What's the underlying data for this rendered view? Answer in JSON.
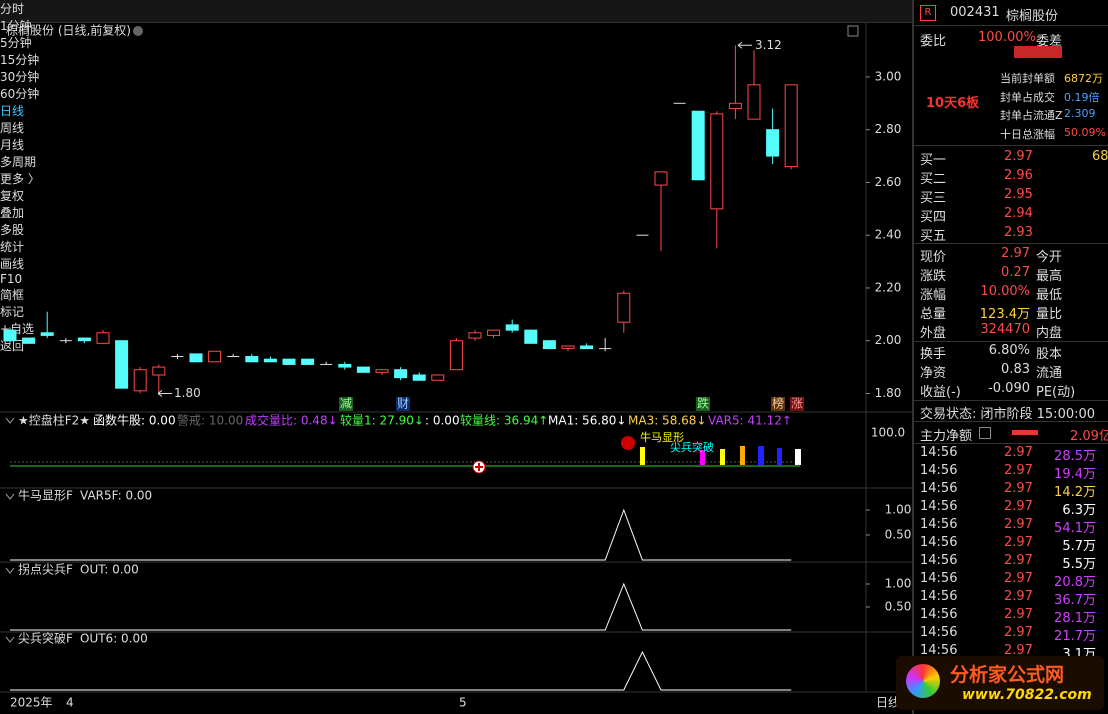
{
  "toolbar": {
    "periods": [
      "分时",
      "1分钟",
      "5分钟",
      "15分钟",
      "30分钟",
      "60分钟",
      "日线",
      "周线",
      "月线",
      "多周期",
      "更多 〉"
    ],
    "tools": [
      "复权",
      "叠加",
      "多股",
      "统计",
      "画线",
      "F10",
      "简框",
      "标记",
      "+自选",
      "返回"
    ]
  },
  "main": {
    "title": "棕榈股份 (日线,前复权)",
    "ylim": [
      1.76,
      3.14
    ],
    "yticks": [
      {
        "value": 1.8,
        "label": "1.80"
      },
      {
        "value": 2.0,
        "label": "2.00"
      },
      {
        "value": 2.2,
        "label": "2.20"
      },
      {
        "value": 2.4,
        "label": "2.40"
      },
      {
        "value": 2.6,
        "label": "2.60"
      },
      {
        "value": 2.8,
        "label": "2.80"
      },
      {
        "value": 3.0,
        "label": "3.00"
      }
    ],
    "high_mark": 3.12,
    "low_mark": {
      "value": 1.8,
      "label": "1.80"
    },
    "up_color": "#ff4a4a",
    "down_color": "#54fcfc",
    "flat_color": "#e0e0e0",
    "candles": [
      [
        2.04,
        2.05,
        1.99,
        2.0
      ],
      [
        2.01,
        2.01,
        1.99,
        1.99
      ],
      [
        2.03,
        2.11,
        2.01,
        2.02
      ],
      [
        2.0,
        2.01,
        1.99,
        2.0
      ],
      [
        2.01,
        2.01,
        1.99,
        2.0
      ],
      [
        1.99,
        2.04,
        1.99,
        2.03
      ],
      [
        2.0,
        2.0,
        1.82,
        1.82
      ],
      [
        1.81,
        1.9,
        1.8,
        1.89
      ],
      [
        1.87,
        1.91,
        1.8,
        1.9
      ],
      [
        1.94,
        1.95,
        1.93,
        1.94
      ],
      [
        1.95,
        1.95,
        1.92,
        1.92
      ],
      [
        1.92,
        1.96,
        1.92,
        1.96
      ],
      [
        1.94,
        1.95,
        1.94,
        1.94
      ],
      [
        1.94,
        1.95,
        1.92,
        1.92
      ],
      [
        1.93,
        1.94,
        1.92,
        1.92
      ],
      [
        1.93,
        1.93,
        1.91,
        1.91
      ],
      [
        1.93,
        1.93,
        1.91,
        1.91
      ],
      [
        1.91,
        1.92,
        1.91,
        1.91
      ],
      [
        1.91,
        1.92,
        1.89,
        1.9
      ],
      [
        1.9,
        1.9,
        1.88,
        1.88
      ],
      [
        1.88,
        1.89,
        1.87,
        1.89
      ],
      [
        1.89,
        1.9,
        1.85,
        1.86
      ],
      [
        1.87,
        1.88,
        1.85,
        1.85
      ],
      [
        1.85,
        1.87,
        1.85,
        1.87
      ],
      [
        1.89,
        2.01,
        1.89,
        2.0
      ],
      [
        2.01,
        2.04,
        2.0,
        2.03
      ],
      [
        2.02,
        2.04,
        2.01,
        2.04
      ],
      [
        2.06,
        2.08,
        2.03,
        2.04
      ],
      [
        2.04,
        2.04,
        1.99,
        1.99
      ],
      [
        2.0,
        2.0,
        1.97,
        1.97
      ],
      [
        1.97,
        1.98,
        1.96,
        1.98
      ],
      [
        1.98,
        1.99,
        1.97,
        1.97
      ],
      [
        1.97,
        2.01,
        1.96,
        1.97
      ],
      [
        2.07,
        2.19,
        2.03,
        2.18
      ],
      [
        2.4,
        2.4,
        2.4,
        2.4
      ],
      [
        2.59,
        2.64,
        2.34,
        2.64
      ],
      [
        2.9,
        2.9,
        2.9,
        2.9
      ],
      [
        2.87,
        2.87,
        2.61,
        2.61
      ],
      [
        2.5,
        2.87,
        2.35,
        2.86
      ],
      [
        2.88,
        3.12,
        2.84,
        2.9
      ],
      [
        2.84,
        3.1,
        2.84,
        2.97
      ],
      [
        2.8,
        2.88,
        2.67,
        2.7
      ],
      [
        2.66,
        2.97,
        2.65,
        2.97
      ]
    ],
    "event_tags": [
      "减",
      "财",
      "跌",
      "榜",
      "涨"
    ]
  },
  "indicator": {
    "title": "★控盘柱F2★",
    "items": [
      "函数牛股: 0.00",
      "警戒: 10.00",
      "成交量比: 0.48↓",
      "较量1: 27.90↓",
      ": 0.00",
      "较量线: 36.94↑",
      "MA1: 56.80↓",
      "MA3: 58.68↓",
      "VAR5: 41.12↑"
    ],
    "ytick": "100.0",
    "notes": [
      "牛马显形",
      "尖兵突破"
    ]
  },
  "panels": [
    {
      "title": "牛马显形F",
      "readout": "VAR5F: 0.00",
      "ylim": [
        0,
        1
      ],
      "yticks": [
        {
          "value": 1,
          "label": "1.00"
        },
        {
          "value": 0.5,
          "label": "0.50"
        }
      ],
      "values": [
        0,
        0,
        0,
        0,
        0,
        0,
        0,
        0,
        0,
        0,
        0,
        0,
        0,
        0,
        0,
        0,
        0,
        0,
        0,
        0,
        0,
        0,
        0,
        0,
        0,
        0,
        0,
        0,
        0,
        0,
        0,
        0,
        0,
        1,
        0,
        0,
        0,
        0,
        0,
        0,
        0,
        0,
        0
      ]
    },
    {
      "title": "拐点尖兵F",
      "readout": "OUT: 0.00",
      "ylim": [
        0,
        1
      ],
      "yticks": [
        {
          "value": 1,
          "label": "1.00"
        },
        {
          "value": 0.5,
          "label": "0.50"
        }
      ],
      "values": [
        0,
        0,
        0,
        0,
        0,
        0,
        0,
        0,
        0,
        0,
        0,
        0,
        0,
        0,
        0,
        0,
        0,
        0,
        0,
        0,
        0,
        0,
        0,
        0,
        0,
        0,
        0,
        0,
        0,
        0,
        0,
        0,
        0,
        1,
        0,
        0,
        0,
        0,
        0,
        0,
        0,
        0,
        0
      ]
    },
    {
      "title": "尖兵突破F",
      "readout": "OUT6: 0.00",
      "ylim": [
        0,
        1
      ],
      "values": [
        0,
        0,
        0,
        0,
        0,
        0,
        0,
        0,
        0,
        0,
        0,
        0,
        0,
        0,
        0,
        0,
        0,
        0,
        0,
        0,
        0,
        0,
        0,
        0,
        0,
        0,
        0,
        0,
        0,
        0,
        0,
        0,
        0,
        0,
        1,
        0,
        0,
        0,
        0,
        0,
        0,
        0,
        0
      ]
    }
  ],
  "time_axis": [
    "2025年",
    "4",
    "5",
    "日线"
  ],
  "quote_panel": {
    "badge": "R",
    "code": "002431",
    "name": "棕榈股份",
    "ratio_label": "委比",
    "ratio": "100.00%",
    "diff_label": "委差",
    "streak": "10天6板",
    "seal": [
      [
        "当前封单额",
        "6872万"
      ],
      [
        "封单占成交",
        "0.19倍"
      ],
      [
        "封单占流通Z",
        "2.309"
      ],
      [
        "十日总涨幅",
        "50.09%"
      ]
    ],
    "bids": [
      [
        "买一",
        "2.97",
        "68"
      ],
      [
        "买二",
        "2.96",
        ""
      ],
      [
        "买三",
        "2.95",
        ""
      ],
      [
        "买四",
        "2.94",
        ""
      ],
      [
        "买五",
        "2.93",
        ""
      ]
    ],
    "quotes": [
      [
        "现价",
        "2.97",
        "今开"
      ],
      [
        "涨跌",
        "0.27",
        "最高"
      ],
      [
        "涨幅",
        "10.00%",
        "最低"
      ],
      [
        "总量",
        "123.4万",
        "量比"
      ],
      [
        "外盘",
        "324470",
        "内盘"
      ]
    ],
    "stats": [
      [
        "换手",
        "6.80%",
        "股本"
      ],
      [
        "净资",
        "0.83",
        "流通"
      ],
      [
        "收益(-)",
        "-0.090",
        "PE(动)"
      ]
    ],
    "status": "交易状态: 闭市阶段 15:00:00",
    "flow_label": "主力净额",
    "flow": "2.09亿",
    "trades": [
      [
        "14:56",
        "2.97",
        "28.5万"
      ],
      [
        "14:56",
        "2.97",
        "19.4万"
      ],
      [
        "14:56",
        "2.97",
        "14.2万"
      ],
      [
        "14:56",
        "2.97",
        "6.3万"
      ],
      [
        "14:56",
        "2.97",
        "54.1万"
      ],
      [
        "14:56",
        "2.97",
        "5.7万"
      ],
      [
        "14:56",
        "2.97",
        "5.5万"
      ],
      [
        "14:56",
        "2.97",
        "20.8万"
      ],
      [
        "14:56",
        "2.97",
        "36.7万"
      ],
      [
        "14:56",
        "2.97",
        "28.1万"
      ],
      [
        "14:56",
        "2.97",
        "21.7万"
      ],
      [
        "14:56",
        "2.97",
        "3.1万"
      ]
    ]
  },
  "logo": {
    "name": "分析家公式网",
    "url": "www.70822.com"
  }
}
